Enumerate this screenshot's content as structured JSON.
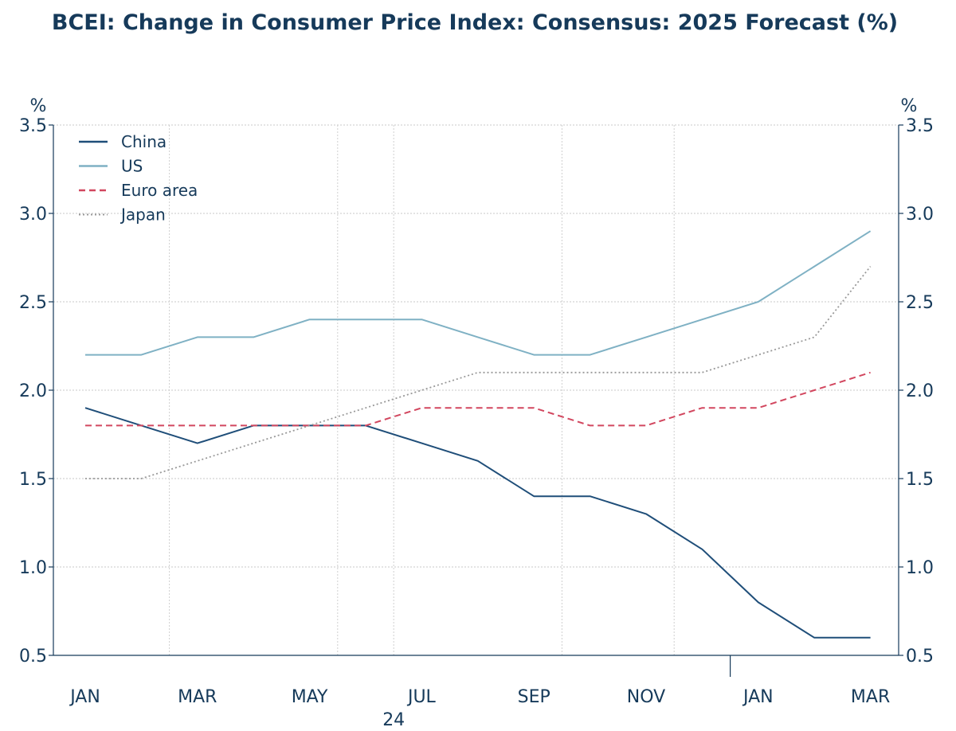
{
  "chart_data": {
    "type": "line",
    "title": "BCEI: Change in Consumer Price Index: Consensus: 2025 Forecast (%)",
    "y_unit_left": "%",
    "y_unit_right": "%",
    "ylim": [
      0.5,
      3.5
    ],
    "y_ticks": [
      "3.5",
      "3.0",
      "2.5",
      "2.0",
      "1.5",
      "1.0",
      "0.5"
    ],
    "x": [
      "2024-01",
      "2024-02",
      "2024-03",
      "2024-04",
      "2024-05",
      "2024-06",
      "2024-07",
      "2024-08",
      "2024-09",
      "2024-10",
      "2024-11",
      "2024-12",
      "2025-01",
      "2025-02",
      "2025-03"
    ],
    "x_tick_labels": [
      {
        "label": "JAN",
        "month": "2024-01"
      },
      {
        "label": "MAR",
        "month": "2024-03"
      },
      {
        "label": "MAY",
        "month": "2024-05"
      },
      {
        "label": "JUL",
        "month": "2024-07"
      },
      {
        "label": "SEP",
        "month": "2024-09"
      },
      {
        "label": "NOV",
        "month": "2024-11"
      },
      {
        "label": "JAN",
        "month": "2025-01"
      },
      {
        "label": "MAR",
        "month": "2025-03"
      }
    ],
    "year_label": "24",
    "grid": true,
    "legend_position": "top-left",
    "series": [
      {
        "name": "China",
        "color": "#1f4e79",
        "style": "solid",
        "values": [
          1.9,
          1.8,
          1.7,
          1.8,
          1.8,
          1.8,
          1.7,
          1.6,
          1.4,
          1.4,
          1.3,
          1.1,
          0.8,
          0.6,
          0.6
        ]
      },
      {
        "name": "US",
        "color": "#7fb1c4",
        "style": "solid",
        "values": [
          2.2,
          2.2,
          2.3,
          2.3,
          2.4,
          2.4,
          2.4,
          2.3,
          2.2,
          2.2,
          2.3,
          2.4,
          2.5,
          2.7,
          2.9
        ]
      },
      {
        "name": "Euro area",
        "color": "#d2475f",
        "style": "dashed",
        "values": [
          1.8,
          1.8,
          1.8,
          1.8,
          1.8,
          1.8,
          1.9,
          1.9,
          1.9,
          1.8,
          1.8,
          1.9,
          1.9,
          2.0,
          2.1
        ]
      },
      {
        "name": "Japan",
        "color": "#999999",
        "style": "dotted",
        "values": [
          1.5,
          1.5,
          1.6,
          1.7,
          1.8,
          1.9,
          2.0,
          2.1,
          2.1,
          2.1,
          2.1,
          2.1,
          2.2,
          2.3,
          2.7
        ]
      }
    ]
  }
}
